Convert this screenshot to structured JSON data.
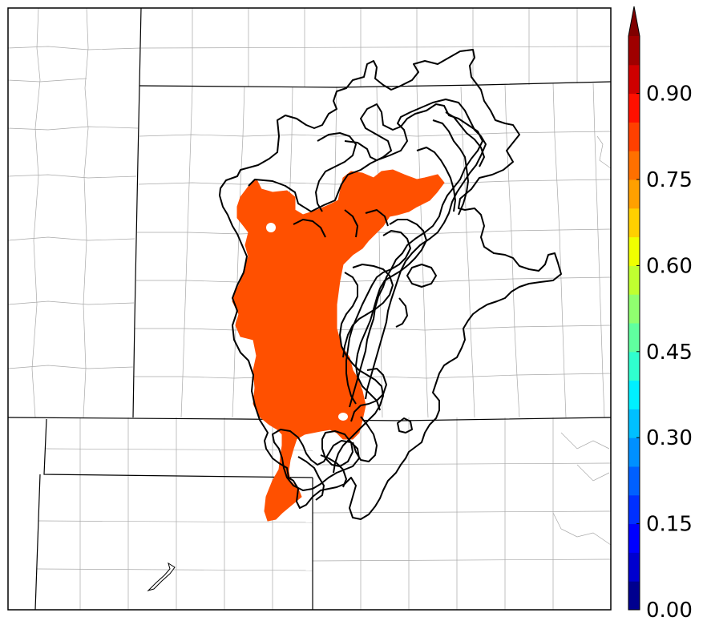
{
  "colorbar": {
    "tick_labels": [
      "0.00",
      "0.15",
      "0.30",
      "0.45",
      "0.60",
      "0.75",
      "0.90"
    ],
    "tick_values": [
      0.0,
      0.15,
      0.3,
      0.45,
      0.6,
      0.75,
      0.9
    ],
    "range": [
      0.0,
      1.0
    ],
    "extend": "max",
    "levels": 20,
    "colors": [
      "#00008f",
      "#0000cf",
      "#0000ff",
      "#0030ff",
      "#0060ff",
      "#0090ff",
      "#00c0ff",
      "#00f0ff",
      "#30ffcf",
      "#60ff9f",
      "#90ff6f",
      "#c0ff30",
      "#f0ff00",
      "#ffd000",
      "#ffa000",
      "#ff7000",
      "#ff4000",
      "#ff1000",
      "#cf0000",
      "#9f0000"
    ],
    "extend_color": "#800000"
  },
  "map": {
    "background": "#ffffff",
    "filled_region_value": 0.8,
    "filled_region_color": "#ff5000",
    "contour_color": "#000000"
  }
}
